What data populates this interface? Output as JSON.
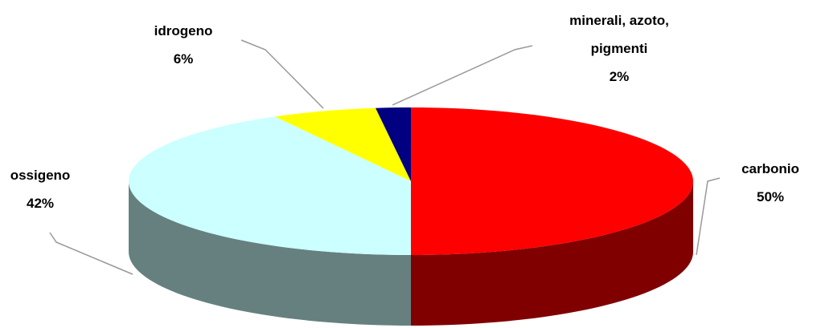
{
  "chart_data": {
    "type": "pie",
    "categories": [
      "carbonio",
      "ossigeno",
      "idrogeno",
      "minerali, azoto, pigmenti"
    ],
    "values": [
      50,
      42,
      6,
      2
    ],
    "value_labels": [
      "50%",
      "42%",
      "6%",
      "2%"
    ],
    "colors": [
      "#ff0000",
      "#ccffff",
      "#ffff00",
      "#000080"
    ]
  }
}
